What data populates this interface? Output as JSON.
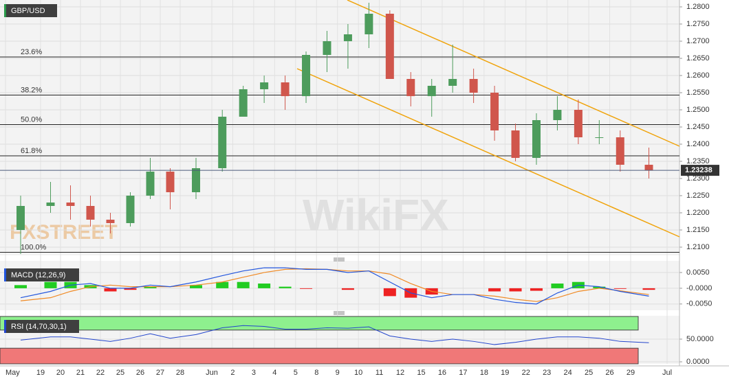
{
  "chart_data": [
    {
      "type": "candlestick",
      "title": "GBP/USD",
      "categories": [
        "May",
        "19",
        "20",
        "21",
        "22",
        "25",
        "26",
        "27",
        "28",
        "Jun",
        "2",
        "3",
        "4",
        "5",
        "8",
        "9",
        "10",
        "11",
        "12",
        "15",
        "16",
        "17",
        "18",
        "19",
        "22",
        "23",
        "24",
        "25",
        "26",
        "29"
      ],
      "x_end_label": "Jul",
      "open": [
        1.215,
        1.222,
        1.223,
        1.222,
        1.218,
        1.217,
        1.225,
        1.232,
        1.226,
        1.233,
        1.248,
        1.256,
        1.258,
        1.254,
        1.266,
        1.27,
        1.272,
        1.278,
        1.259,
        1.254,
        1.257,
        1.259,
        1.255,
        1.244,
        1.236,
        1.247,
        1.25,
        1.242,
        1.242,
        1.234
      ],
      "high": [
        1.225,
        1.229,
        1.228,
        1.225,
        1.22,
        1.226,
        1.236,
        1.233,
        1.236,
        1.25,
        1.257,
        1.26,
        1.26,
        1.267,
        1.273,
        1.275,
        1.2812,
        1.279,
        1.261,
        1.259,
        1.269,
        1.262,
        1.257,
        1.246,
        1.249,
        1.254,
        1.253,
        1.247,
        1.244,
        1.239
      ],
      "low": [
        1.208,
        1.22,
        1.218,
        1.216,
        1.214,
        1.216,
        1.224,
        1.221,
        1.224,
        1.232,
        1.248,
        1.252,
        1.25,
        1.252,
        1.261,
        1.262,
        1.268,
        1.259,
        1.251,
        1.248,
        1.255,
        1.252,
        1.241,
        1.235,
        1.234,
        1.244,
        1.24,
        1.24,
        1.232,
        1.23
      ],
      "close": [
        1.222,
        1.223,
        1.222,
        1.218,
        1.217,
        1.225,
        1.232,
        1.226,
        1.233,
        1.248,
        1.256,
        1.258,
        1.254,
        1.266,
        1.27,
        1.272,
        1.278,
        1.259,
        1.254,
        1.257,
        1.259,
        1.255,
        1.244,
        1.236,
        1.247,
        1.25,
        1.242,
        1.242,
        1.234,
        1.23238
      ],
      "up_color": "#4d9c5c",
      "down_color": "#d0564c",
      "ylim": [
        1.2076,
        1.282
      ],
      "yticks": [
        {
          "value": 1.21,
          "label": "1.2100"
        },
        {
          "value": 1.215,
          "label": "1.2150"
        },
        {
          "value": 1.22,
          "label": "1.2200"
        },
        {
          "value": 1.225,
          "label": "1.2250"
        },
        {
          "value": 1.23,
          "label": "1.2300"
        },
        {
          "value": 1.235,
          "label": "1.2350"
        },
        {
          "value": 1.24,
          "label": "1.2400"
        },
        {
          "value": 1.245,
          "label": "1.2450"
        },
        {
          "value": 1.25,
          "label": "1.2500"
        },
        {
          "value": 1.255,
          "label": "1.2550"
        },
        {
          "value": 1.26,
          "label": "1.2600"
        },
        {
          "value": 1.265,
          "label": "1.2650"
        },
        {
          "value": 1.27,
          "label": "1.2700"
        },
        {
          "value": 1.275,
          "label": "1.2750"
        },
        {
          "value": 1.28,
          "label": "1.2800"
        }
      ],
      "grid": true,
      "last_price": 1.23238,
      "fibonacci": [
        {
          "label": "23.6%",
          "value": 1.2654
        },
        {
          "label": "38.2%",
          "value": 1.2543
        },
        {
          "label": "50.0%",
          "value": 1.2457
        },
        {
          "label": "61.8%",
          "value": 1.2366
        },
        {
          "label": "100.0%",
          "value": 1.2085
        }
      ],
      "channel": {
        "color": "#f0a30a",
        "upper": [
          1.282,
          1.2394
        ],
        "lower": [
          1.262,
          1.213
        ]
      },
      "watermarks": [
        "FXSTREET",
        "WikiFX"
      ]
    },
    {
      "type": "macd",
      "title": "MACD (12,26,9)",
      "macd": {
        "color": "#2255dd",
        "values": [
          -0.003,
          -0.001,
          0.001,
          0.0015,
          0.0,
          0.0,
          0.001,
          0.0005,
          0.002,
          0.004,
          0.0055,
          0.0065,
          0.0065,
          0.006,
          0.006,
          0.005,
          0.0055,
          0.002,
          -0.0015,
          -0.003,
          -0.002,
          -0.002,
          -0.0035,
          -0.0045,
          -0.005,
          -0.0015,
          0.001,
          0.0005,
          -0.001,
          -0.0025
        ]
      },
      "signal": {
        "color": "#f08a24",
        "values": [
          -0.004,
          -0.003,
          -0.001,
          0.0005,
          0.001,
          0.0005,
          0.0005,
          0.0005,
          0.001,
          0.002,
          0.0035,
          0.005,
          0.006,
          0.0062,
          0.006,
          0.0055,
          0.0055,
          0.0045,
          0.0015,
          -0.001,
          -0.002,
          -0.002,
          -0.0025,
          -0.0035,
          -0.0042,
          -0.003,
          -0.001,
          0.0,
          -0.0008,
          -0.002
        ]
      },
      "histogram": {
        "up_color": "#22cc22",
        "down_color": "#ee2222",
        "values": [
          0.001,
          0.002,
          0.002,
          0.001,
          -0.001,
          -0.0005,
          0.0005,
          0.0,
          0.001,
          0.002,
          0.002,
          0.0015,
          0.0005,
          -0.0002,
          0.0,
          -0.0005,
          0.0,
          -0.0025,
          -0.003,
          -0.002,
          0.0,
          0.0,
          -0.001,
          -0.001,
          -0.0008,
          0.0015,
          0.002,
          0.0005,
          -0.0002,
          -0.0005
        ]
      },
      "ylim": [
        -0.007,
        0.0087
      ],
      "yticks": [
        {
          "value": 0.005,
          "label": "0.0050"
        },
        {
          "value": 0,
          "label": "-0.0000"
        },
        {
          "value": -0.005,
          "label": "-0.0050"
        }
      ],
      "grid": true
    },
    {
      "type": "line",
      "title": "RSI (14,70,30,1)",
      "color": "#2244cc",
      "values": [
        48,
        55,
        55,
        50,
        45,
        52,
        62,
        52,
        60,
        75,
        80,
        78,
        72,
        72,
        75,
        74,
        77,
        57,
        50,
        45,
        50,
        45,
        38,
        43,
        50,
        55,
        55,
        52,
        45,
        42
      ],
      "overbought": 70,
      "oversold": 30,
      "overbought_color": "#8ef08e",
      "oversold_color": "#f07878",
      "ylim": [
        -4.5,
        101.5
      ],
      "yticks": [
        {
          "value": 50,
          "label": "50.0000"
        },
        {
          "value": 0,
          "label": "0.0000"
        }
      ],
      "grid": true
    }
  ]
}
